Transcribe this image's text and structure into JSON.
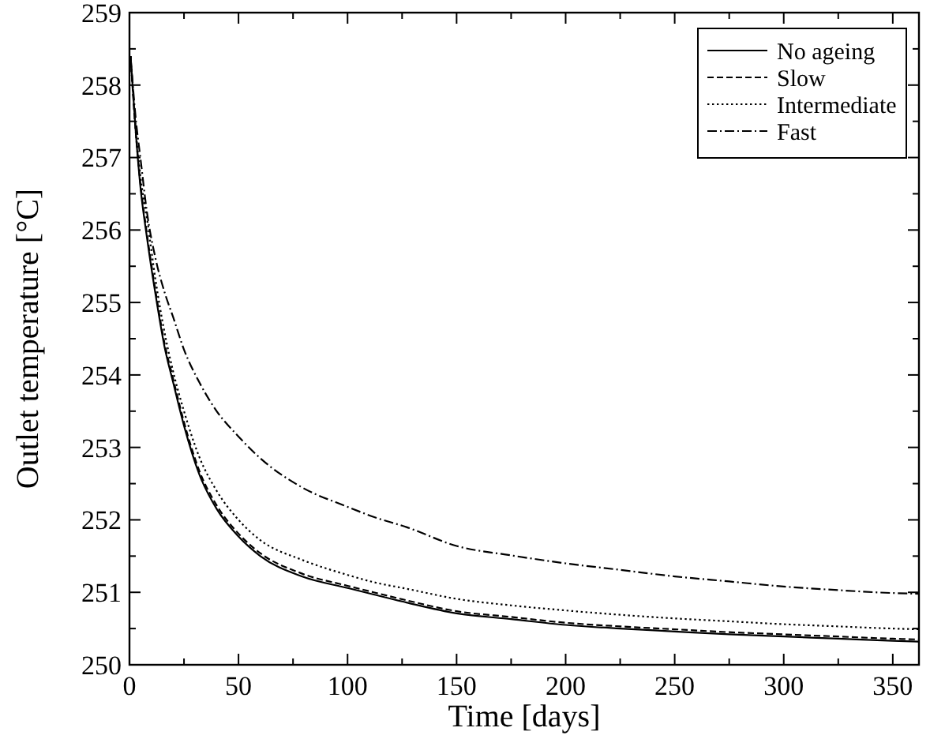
{
  "chart_data": {
    "type": "line",
    "xlabel": "Time [days]",
    "ylabel": "Outlet temperature [°C]",
    "xlim": [
      0,
      362
    ],
    "ylim": [
      250,
      259
    ],
    "xticks": [
      0,
      {
        "value": 25,
        "label": null
      },
      50,
      {
        "value": 75,
        "label": null
      },
      100,
      {
        "value": 125,
        "label": null
      },
      150,
      {
        "value": 175,
        "label": null
      },
      200,
      {
        "value": 225,
        "label": null
      },
      250,
      {
        "value": 275,
        "label": null
      },
      300,
      {
        "value": 325,
        "label": null
      },
      350
    ],
    "yticks": [
      250,
      {
        "value": 250.5,
        "label": null
      },
      251,
      {
        "value": 251.5,
        "label": null
      },
      252,
      {
        "value": 252.5,
        "label": null
      },
      253,
      {
        "value": 253.5,
        "label": null
      },
      254,
      {
        "value": 254.5,
        "label": null
      },
      255,
      {
        "value": 255.5,
        "label": null
      },
      256,
      {
        "value": 256.5,
        "label": null
      },
      257,
      {
        "value": 257.5,
        "label": null
      },
      258,
      {
        "value": 258.5,
        "label": null
      },
      259
    ],
    "x": [
      0.5,
      3,
      5,
      8,
      12,
      16,
      20,
      25,
      32,
      40,
      50,
      60,
      79,
      100,
      112,
      127,
      150,
      175,
      200,
      225,
      250,
      275,
      300,
      325,
      350,
      362
    ],
    "legend": "top right",
    "grid": false,
    "series": [
      {
        "name": "No ageing",
        "color": "#000000",
        "line_style": "solid",
        "values": [
          258.4,
          257.3,
          256.6,
          255.9,
          255.1,
          254.4,
          253.9,
          253.3,
          252.63,
          252.15,
          251.77,
          251.5,
          251.22,
          251.06,
          250.97,
          250.86,
          250.71,
          250.63,
          250.55,
          250.5,
          250.46,
          250.42,
          250.39,
          250.36,
          250.33,
          250.32
        ]
      },
      {
        "name": "Slow",
        "color": "#000000",
        "line_style": "dashed",
        "values": [
          258.4,
          257.3,
          256.65,
          255.95,
          255.15,
          254.45,
          253.95,
          253.35,
          252.68,
          252.2,
          251.81,
          251.54,
          251.26,
          251.09,
          251.0,
          250.89,
          250.74,
          250.66,
          250.58,
          250.53,
          250.49,
          250.45,
          250.42,
          250.39,
          250.36,
          250.35
        ]
      },
      {
        "name": "Intermediate",
        "color": "#000000",
        "line_style": "dotted",
        "values": [
          258.4,
          257.35,
          256.75,
          256.17,
          255.3,
          254.6,
          254.05,
          253.5,
          252.87,
          252.4,
          252.0,
          251.72,
          251.45,
          251.24,
          251.14,
          251.05,
          250.91,
          250.82,
          250.75,
          250.69,
          250.64,
          250.6,
          250.56,
          250.53,
          250.5,
          250.49
        ]
      },
      {
        "name": "Fast",
        "color": "#000000",
        "line_style": "dashdot",
        "values": [
          258.4,
          257.5,
          257.0,
          256.25,
          255.6,
          255.15,
          254.8,
          254.35,
          253.9,
          253.5,
          253.15,
          252.85,
          252.45,
          252.18,
          252.04,
          251.9,
          251.64,
          251.51,
          251.4,
          251.31,
          251.22,
          251.15,
          251.08,
          251.03,
          250.99,
          250.98
        ]
      }
    ]
  }
}
